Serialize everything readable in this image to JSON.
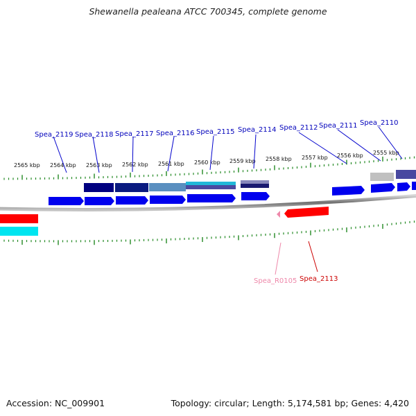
{
  "title": "Shewanella pealeana ATCC 700345, complete genome",
  "footer": {
    "accession": "Accession: NC_009901",
    "summary": "Topology: circular; Length: 5,174,581 bp; Genes: 4,420"
  },
  "colors": {
    "forward_cds": "#0000ee",
    "reverse_cds": "#ff0000",
    "backbone": "#777777",
    "tick": "#228822",
    "gene_label_forward": "#0000bb",
    "gene_label_reverse": "#cc0000",
    "gene_label_rna": "#ee88aa"
  },
  "scale": {
    "unit": "kbp",
    "labels": [
      "2565 kbp",
      "2564 kbp",
      "2563 kbp",
      "2562 kbp",
      "2561 kbp",
      "2560 kbp",
      "2559 kbp",
      "2558 kbp",
      "2557 kbp",
      "2556 kbp",
      "2555 kbp"
    ]
  },
  "gene_labels_top": [
    "Spea_2119",
    "Spea_2118",
    "Spea_2117",
    "Spea_2116",
    "Spea_2115",
    "Spea_2114",
    "Spea_2112",
    "Spea_2111",
    "Spea_2110"
  ],
  "gene_labels_bottom": [
    {
      "text": "Spea_R0105",
      "type": "rna"
    },
    {
      "text": "Spea_2113",
      "type": "reverse"
    }
  ]
}
